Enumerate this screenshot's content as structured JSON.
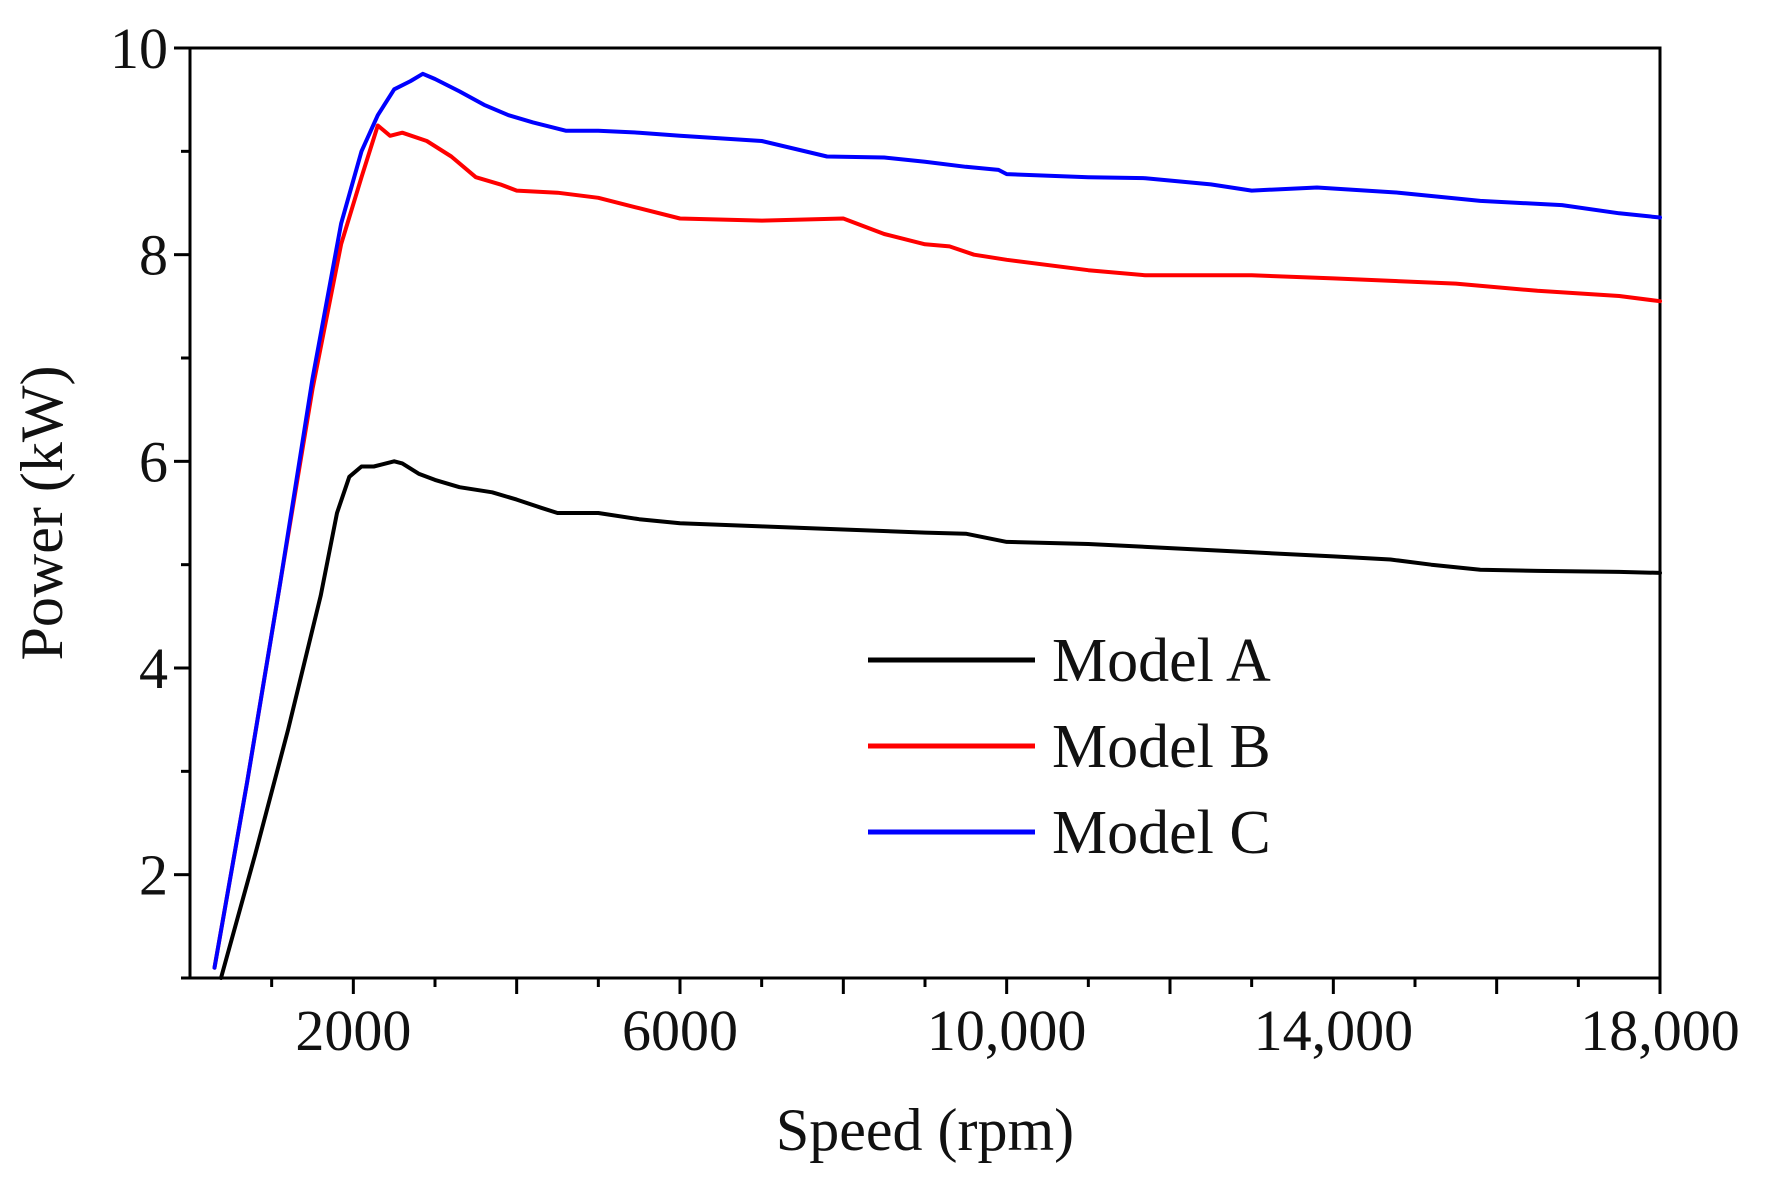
{
  "chart_data": {
    "type": "line",
    "xlabel": "Speed (rpm)",
    "ylabel": "Power (kW)",
    "xlim": [
      0,
      18000
    ],
    "ylim": [
      1,
      10
    ],
    "xticks": [
      2000,
      6000,
      10000,
      14000,
      18000
    ],
    "xtick_labels": [
      "2000",
      "6000",
      "10,000",
      "14,000",
      "18,000"
    ],
    "yticks": [
      2,
      4,
      6,
      8,
      10
    ],
    "ytick_labels": [
      "2",
      "4",
      "6",
      "8",
      "10"
    ],
    "grid": false,
    "legend_position": "bottom-right",
    "series": [
      {
        "name": "Model A",
        "color": "#000000",
        "x": [
          380,
          800,
          1200,
          1600,
          1800,
          1950,
          2100,
          2250,
          2500,
          2600,
          2800,
          3000,
          3300,
          3700,
          4000,
          4300,
          4500,
          5000,
          5500,
          6000,
          7000,
          8000,
          9000,
          9500,
          10000,
          11000,
          12000,
          13000,
          14000,
          14700,
          15200,
          15800,
          16500,
          17500,
          18000
        ],
        "y": [
          1.0,
          2.2,
          3.4,
          4.7,
          5.5,
          5.85,
          5.95,
          5.95,
          6.0,
          5.98,
          5.88,
          5.82,
          5.75,
          5.7,
          5.63,
          5.55,
          5.5,
          5.5,
          5.44,
          5.4,
          5.37,
          5.34,
          5.31,
          5.3,
          5.22,
          5.2,
          5.16,
          5.12,
          5.08,
          5.05,
          5.0,
          4.95,
          4.94,
          4.93,
          4.92
        ]
      },
      {
        "name": "Model B",
        "color": "#ff0000",
        "x": [
          300,
          700,
          1100,
          1500,
          1850,
          2100,
          2300,
          2450,
          2600,
          2900,
          3200,
          3500,
          3800,
          4000,
          4500,
          5000,
          5500,
          6000,
          7000,
          8000,
          8500,
          9000,
          9300,
          9600,
          10000,
          11000,
          11700,
          13000,
          14000,
          15500,
          16500,
          17500,
          18000
        ],
        "y": [
          1.1,
          2.9,
          4.8,
          6.7,
          8.1,
          8.75,
          9.25,
          9.15,
          9.18,
          9.1,
          8.95,
          8.75,
          8.68,
          8.62,
          8.6,
          8.55,
          8.45,
          8.35,
          8.33,
          8.35,
          8.2,
          8.1,
          8.08,
          8.0,
          7.95,
          7.85,
          7.8,
          7.8,
          7.77,
          7.72,
          7.65,
          7.6,
          7.55
        ]
      },
      {
        "name": "Model C",
        "color": "#0000ff",
        "x": [
          300,
          700,
          1100,
          1500,
          1850,
          2100,
          2300,
          2500,
          2700,
          2850,
          3000,
          3300,
          3600,
          3900,
          4200,
          4600,
          5000,
          5500,
          6000,
          7000,
          7800,
          8500,
          9000,
          9500,
          9900,
          10000,
          11000,
          11700,
          12500,
          13000,
          13800,
          14800,
          15800,
          16800,
          17500,
          18000
        ],
        "y": [
          1.1,
          2.9,
          4.8,
          6.8,
          8.3,
          9.0,
          9.35,
          9.6,
          9.68,
          9.75,
          9.7,
          9.58,
          9.45,
          9.35,
          9.28,
          9.2,
          9.2,
          9.18,
          9.15,
          9.1,
          8.95,
          8.94,
          8.9,
          8.85,
          8.82,
          8.78,
          8.75,
          8.74,
          8.68,
          8.62,
          8.65,
          8.6,
          8.52,
          8.48,
          8.4,
          8.36
        ]
      }
    ]
  }
}
